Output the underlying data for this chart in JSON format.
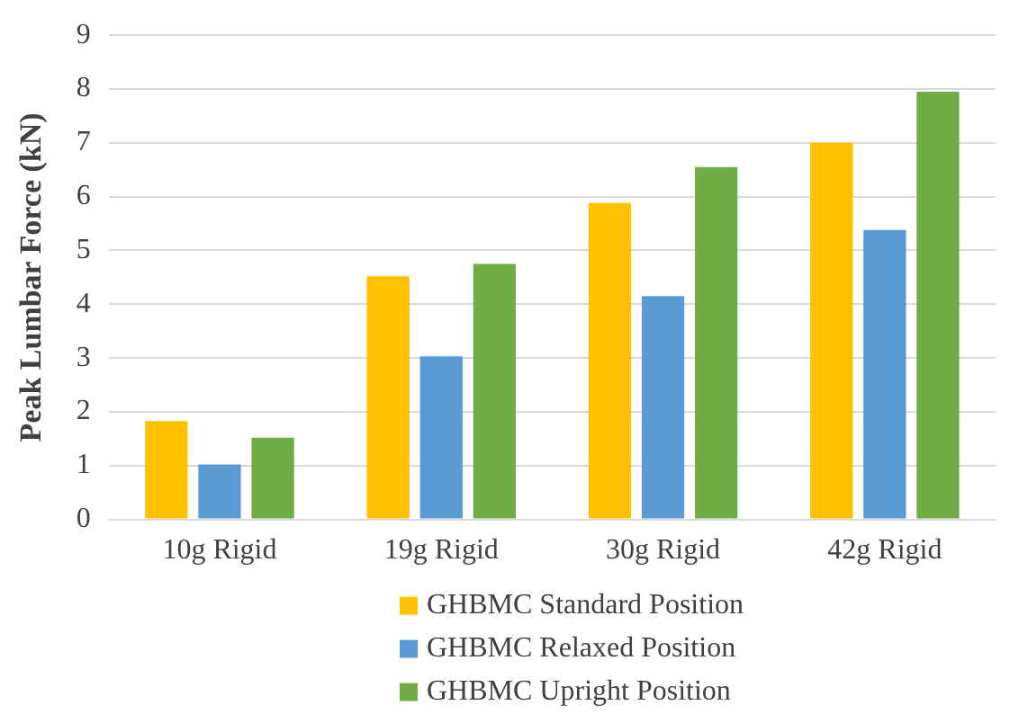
{
  "chart_data": {
    "type": "bar",
    "ylabel": "Peak Lumbar Force (kN)",
    "categories": [
      "10g Rigid",
      "19g Rigid",
      "30g Rigid",
      "42g Rigid"
    ],
    "series": [
      {
        "name": "GHBMC Standard Position",
        "color": "#ffc000",
        "values": [
          1.83,
          4.52,
          5.88,
          7.0
        ]
      },
      {
        "name": "GHBMC Relaxed Position",
        "color": "#5b9bd5",
        "values": [
          1.02,
          3.03,
          4.15,
          5.38
        ]
      },
      {
        "name": "GHBMC Upright Position",
        "color": "#70ad47",
        "values": [
          1.52,
          4.75,
          6.55,
          7.95
        ]
      }
    ],
    "ylim": [
      0,
      9
    ],
    "yticks": [
      0,
      1,
      2,
      3,
      4,
      5,
      6,
      7,
      8,
      9
    ],
    "grid": "y",
    "legend": "bottom"
  }
}
